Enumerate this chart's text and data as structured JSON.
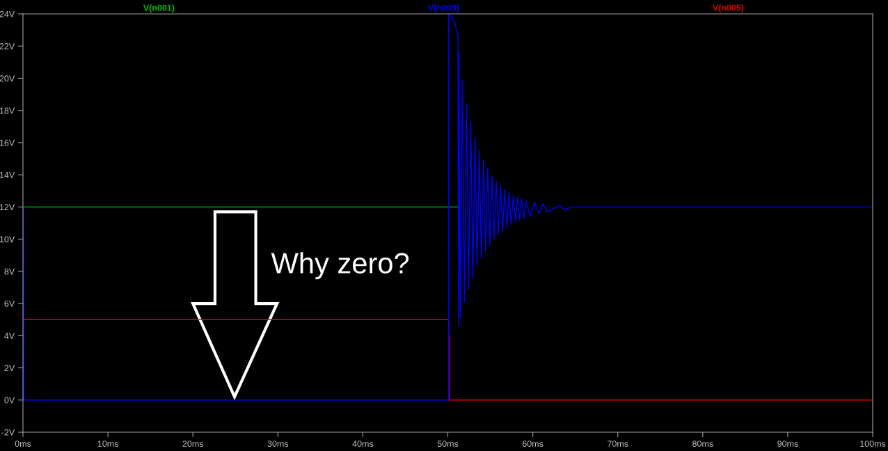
{
  "chart_data": {
    "type": "line",
    "xlim": [
      0,
      100
    ],
    "ylim": [
      -2,
      24
    ],
    "xticks": [
      {
        "value": 0,
        "label": "0ms"
      },
      {
        "value": 10,
        "label": "10ms"
      },
      {
        "value": 20,
        "label": "20ms"
      },
      {
        "value": 30,
        "label": "30ms"
      },
      {
        "value": 40,
        "label": "40ms"
      },
      {
        "value": 50,
        "label": "50ms"
      },
      {
        "value": 60,
        "label": "60ms"
      },
      {
        "value": 70,
        "label": "70ms"
      },
      {
        "value": 80,
        "label": "80ms"
      },
      {
        "value": 90,
        "label": "90ms"
      },
      {
        "value": 100,
        "label": "100ms"
      }
    ],
    "yticks": [
      {
        "value": -2,
        "label": "-2V"
      },
      {
        "value": 0,
        "label": "0V"
      },
      {
        "value": 2,
        "label": "2V"
      },
      {
        "value": 4,
        "label": "4V"
      },
      {
        "value": 6,
        "label": "6V"
      },
      {
        "value": 8,
        "label": "8V"
      },
      {
        "value": 10,
        "label": "10V"
      },
      {
        "value": 12,
        "label": "12V"
      },
      {
        "value": 14,
        "label": "14V"
      },
      {
        "value": 16,
        "label": "16V"
      },
      {
        "value": 18,
        "label": "18V"
      },
      {
        "value": 20,
        "label": "20V"
      },
      {
        "value": 22,
        "label": "22V"
      },
      {
        "value": 24,
        "label": "24V"
      }
    ],
    "grid": false,
    "legend": "top",
    "annotations": [
      "Why zero?"
    ],
    "series": [
      {
        "name": "V(n001)",
        "color": "#00c000",
        "x": [
          0,
          51.2
        ],
        "values": [
          12,
          12
        ]
      },
      {
        "name": "V(n005)",
        "color": "#e00000",
        "x": [
          0,
          0.05,
          50.1,
          50.1,
          50.2,
          50.2,
          100
        ],
        "values": [
          0,
          5,
          5,
          4,
          4,
          0,
          0
        ]
      },
      {
        "name": "V(n003)",
        "color": "#0000ff",
        "x": [
          0,
          0.05,
          0.1,
          50.1,
          50.1,
          50.5,
          50.9,
          51.2,
          51.25,
          51.3,
          51.45,
          51.7,
          51.95,
          52.2,
          52.45,
          52.7,
          52.95,
          53.2,
          53.45,
          53.7,
          53.95,
          54.2,
          54.45,
          54.7,
          54.95,
          55.2,
          55.45,
          55.7,
          55.95,
          56.2,
          56.45,
          56.7,
          56.95,
          57.2,
          57.45,
          57.7,
          57.95,
          58.2,
          58.45,
          58.7,
          58.95,
          59.2,
          59.7,
          60.2,
          60.7,
          61.2,
          61.7,
          63.2,
          63.7,
          64.5,
          100
        ],
        "values": [
          0,
          12,
          0,
          0,
          24,
          23.8,
          23.3,
          22.6,
          4.6,
          21.6,
          5.1,
          19.9,
          6.1,
          18.4,
          6.9,
          17.3,
          7.6,
          16.3,
          8.3,
          15.5,
          8.8,
          14.9,
          9.2,
          14.4,
          9.6,
          13.9,
          10.0,
          13.6,
          10.3,
          13.3,
          10.5,
          13.1,
          10.7,
          12.9,
          10.9,
          12.7,
          11.1,
          12.6,
          11.2,
          12.5,
          11.3,
          12.4,
          11.4,
          12.3,
          11.6,
          12.2,
          11.7,
          12.1,
          11.8,
          12,
          12
        ]
      }
    ]
  }
}
